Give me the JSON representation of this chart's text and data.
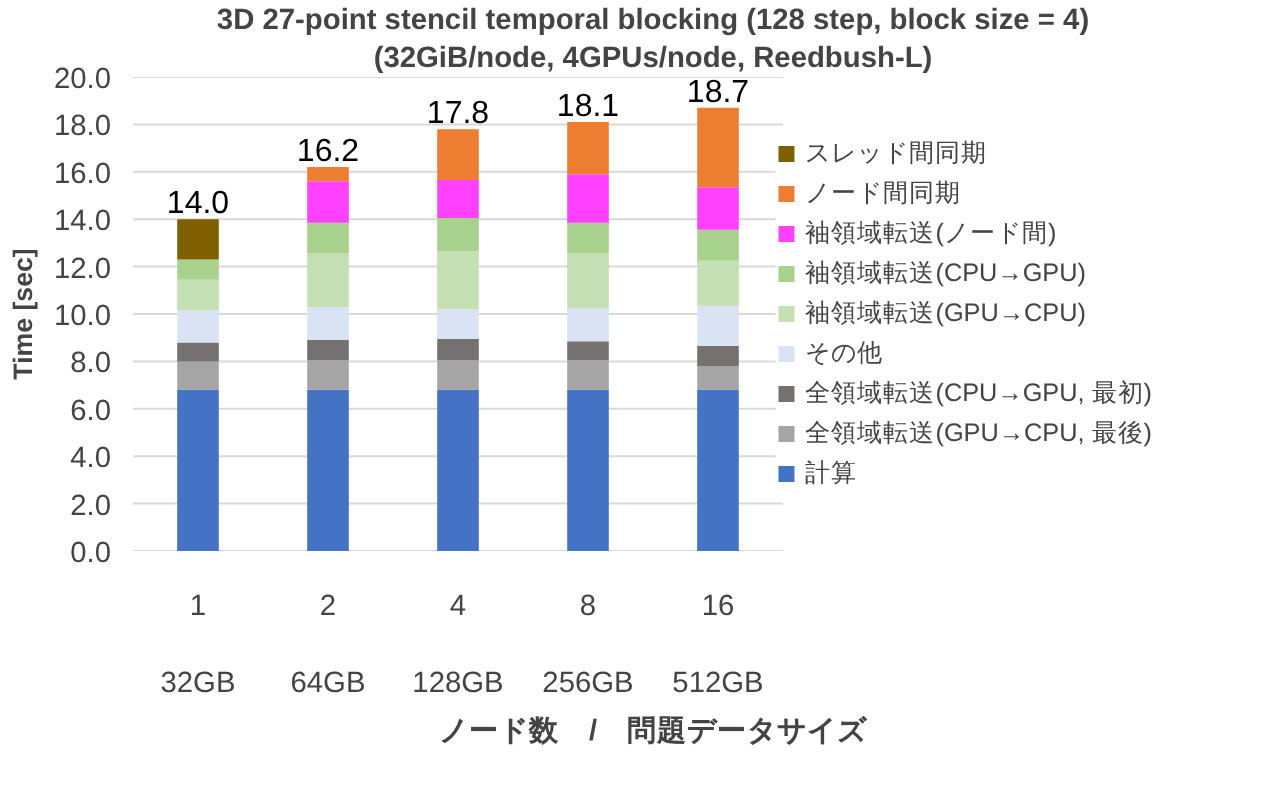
{
  "chart_data": {
    "type": "bar",
    "stacked": true,
    "title": "3D 27-point stencil temporal blocking (128 step, block size = 4)",
    "subtitle": "(32GiB/node, 4GPUs/node, Reedbush-L)",
    "ylabel": "Time [sec]",
    "xlabel": "ノード数　/　問題データサイズ",
    "categories": [
      "1\n\n32GB",
      "2\n\n64GB",
      "4\n\n128GB",
      "8\n\n256GB",
      "16\n\n512GB"
    ],
    "series": [
      {
        "name": "計算",
        "color": "#4472c4",
        "values": [
          6.8,
          6.8,
          6.8,
          6.8,
          6.8
        ]
      },
      {
        "name": "全領域転送(GPU→CPU, 最後)",
        "color": "#a5a5a5",
        "values": [
          1.2,
          1.25,
          1.25,
          1.25,
          1.0
        ]
      },
      {
        "name": "全領域転送(CPU→GPU, 最初)",
        "color": "#767171",
        "values": [
          0.8,
          0.85,
          0.9,
          0.8,
          0.85
        ]
      },
      {
        "name": "その他",
        "color": "#dae3f3",
        "values": [
          1.35,
          1.4,
          1.25,
          1.4,
          1.7
        ]
      },
      {
        "name": "袖領域転送(GPU→CPU)",
        "color": "#c5e0b4",
        "values": [
          1.3,
          2.25,
          2.45,
          2.3,
          1.9
        ]
      },
      {
        "name": "袖領域転送(CPU→GPU)",
        "color": "#a9d18e",
        "values": [
          0.85,
          1.3,
          1.4,
          1.3,
          1.3
        ]
      },
      {
        "name": "袖領域転送(ノード間)",
        "color": "#ff40ff",
        "values": [
          0,
          1.75,
          1.6,
          2.05,
          1.8
        ]
      },
      {
        "name": "ノード間同期",
        "color": "#ed7d31",
        "values": [
          0,
          0.6,
          2.15,
          2.2,
          3.35
        ]
      },
      {
        "name": "スレッド間同期",
        "color": "#7f6000",
        "values": [
          1.7,
          0,
          0,
          0,
          0
        ]
      }
    ],
    "totals": [
      "14.0",
      "16.2",
      "17.8",
      "18.1",
      "18.7"
    ],
    "ylim": [
      0,
      20
    ],
    "yticks": [
      {
        "value": 0,
        "label": "0.0"
      },
      {
        "value": 2,
        "label": "2.0"
      },
      {
        "value": 4,
        "label": "4.0"
      },
      {
        "value": 6,
        "label": "6.0"
      },
      {
        "value": 8,
        "label": "8.0"
      },
      {
        "value": 10,
        "label": "10.0"
      },
      {
        "value": 12,
        "label": "12.0"
      },
      {
        "value": 14,
        "label": "14.0"
      },
      {
        "value": 16,
        "label": "16.0"
      },
      {
        "value": 18,
        "label": "18.0"
      },
      {
        "value": 20,
        "label": "20.0"
      }
    ],
    "grid": "y",
    "legend": "right"
  }
}
